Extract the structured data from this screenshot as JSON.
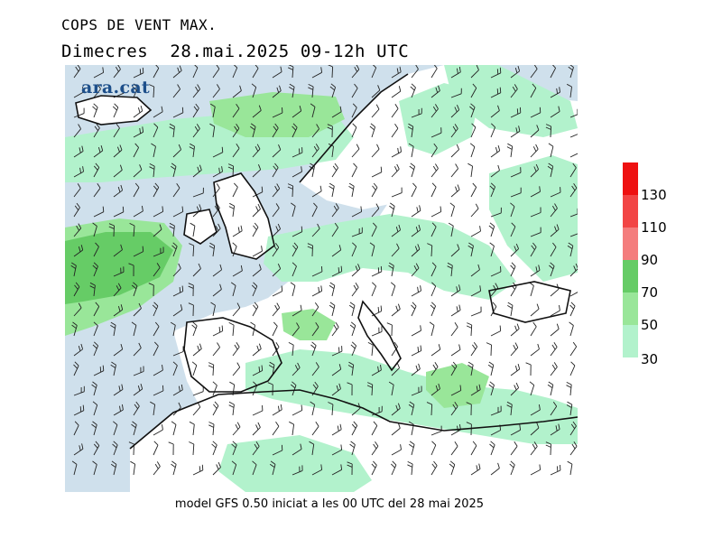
{
  "header": {
    "title": "COPS DE VENT MAX.",
    "subtitle": "Dimecres  28.mai.2025 09-12h UTC"
  },
  "logo": {
    "text": "ara.cat"
  },
  "footer": {
    "text": "model GFS 0.50 iniciat a les 00 UTC del 28 mai 2025"
  },
  "legend": {
    "ticks": [
      "130",
      "110",
      "90",
      "70",
      "50",
      "30"
    ],
    "colors": [
      "#ee1111",
      "#f24545",
      "#f47d7d",
      "#66cc66",
      "#99e699",
      "#b2f2cc"
    ]
  },
  "map": {
    "colors": {
      "sea": "#cfe0ec",
      "land": "#ffffff",
      "wind_30_50": "#b2f2cc",
      "wind_50_70": "#99e699",
      "wind_70_90": "#66cc66",
      "coastline": "#111111",
      "barbs": "#222222"
    }
  }
}
